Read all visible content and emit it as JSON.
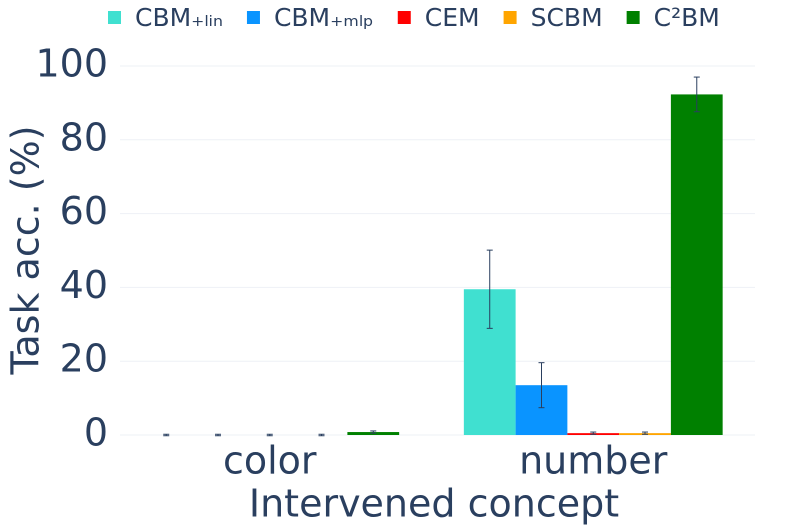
{
  "chart_data": {
    "type": "bar",
    "x_label": "Intervened concept",
    "y_label": "Task acc. (%)",
    "categories": [
      "color",
      "number"
    ],
    "series": [
      {
        "name": "CBM₊ₗᵢₙ",
        "color": "#40e0d0",
        "values": [
          0,
          39.5
        ],
        "errors": [
          0.2,
          10.6
        ]
      },
      {
        "name": "CBM₊ₘₗₚ",
        "color": "#0a94ff",
        "values": [
          0,
          13.5
        ],
        "errors": [
          0.2,
          6.1
        ]
      },
      {
        "name": "CEM",
        "color": "#ff0000",
        "values": [
          0,
          0.5
        ],
        "errors": [
          0.2,
          0.3
        ]
      },
      {
        "name": "SCBM",
        "color": "#ffa500",
        "values": [
          0,
          0.5
        ],
        "errors": [
          0.2,
          0.3
        ]
      },
      {
        "name": "C²BM",
        "color": "#008000",
        "values": [
          0.8,
          92.3
        ],
        "errors": [
          0.3,
          4.7
        ]
      }
    ],
    "ylim": [
      0,
      100
    ],
    "yticks": [
      0,
      20,
      40,
      60,
      80,
      100
    ],
    "grid": true
  }
}
